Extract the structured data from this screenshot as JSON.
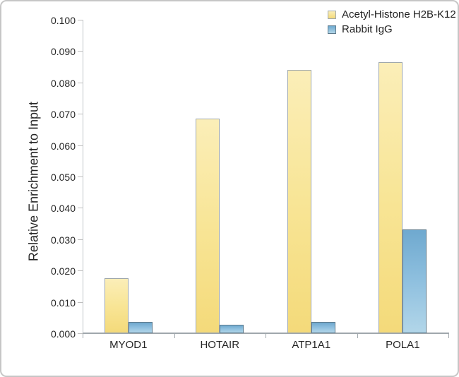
{
  "chart_data": {
    "type": "bar",
    "title": "",
    "xlabel": "",
    "ylabel": "Relative Enrichment to Input",
    "categories": [
      "MYOD1",
      "HOTAIR",
      "ATP1A1",
      "POLA1"
    ],
    "series": [
      {
        "name": "Acetyl-Histone H2B-K12",
        "values": [
          0.0175,
          0.0685,
          0.084,
          0.0865
        ],
        "fill_top": "#FBEEB8",
        "fill_mid": "#F8E596",
        "fill_bottom": "#F4DA7A",
        "border": "#9FA8AE"
      },
      {
        "name": "Rabbit IgG",
        "values": [
          0.0035,
          0.0026,
          0.0035,
          0.033
        ],
        "fill_top": "#6FA9CF",
        "fill_mid": "#8FC0DF",
        "fill_bottom": "#B2D6E9",
        "border": "#5E7A8C"
      }
    ],
    "ylim": [
      0,
      0.1
    ],
    "ytick_step": 0.01,
    "ytick_decimals": 3,
    "grid": false,
    "legend_position": "top-right"
  },
  "colors": {
    "background": "#FFFFFF",
    "frame_border": "#C6C6C6",
    "text": "#262626",
    "y_axis_line": "#C0C4C7",
    "x_axis_line": "#A0A7AC",
    "tick_mark": "#BFBFBF"
  }
}
